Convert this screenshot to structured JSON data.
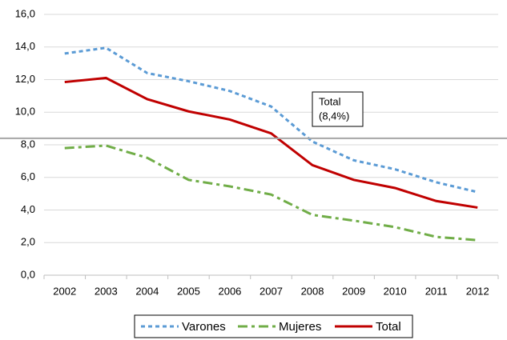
{
  "chart_data": {
    "type": "line",
    "categories": [
      "2002",
      "2003",
      "2004",
      "2005",
      "2006",
      "2007",
      "2008",
      "2009",
      "2010",
      "2011",
      "2012"
    ],
    "series": [
      {
        "name": "Varones",
        "color": "#5b9bd5",
        "style": "dash",
        "values": [
          13.6,
          13.95,
          12.4,
          11.9,
          11.3,
          10.35,
          8.2,
          7.05,
          6.5,
          5.7,
          5.1
        ]
      },
      {
        "name": "Mujeres",
        "color": "#70ad47",
        "style": "dash-dot",
        "values": [
          7.8,
          7.95,
          7.2,
          5.85,
          5.45,
          4.95,
          3.7,
          3.35,
          2.95,
          2.35,
          2.15
        ]
      },
      {
        "name": "Total",
        "color": "#c00000",
        "style": "solid",
        "values": [
          11.85,
          12.1,
          10.8,
          10.05,
          9.55,
          8.7,
          6.75,
          5.85,
          5.35,
          4.55,
          4.15
        ]
      }
    ],
    "ylim": [
      0,
      16
    ],
    "yticks": [
      {
        "value": 0,
        "label": "0,0"
      },
      {
        "value": 2,
        "label": "2,0"
      },
      {
        "value": 4,
        "label": "4,0"
      },
      {
        "value": 6,
        "label": "6,0"
      },
      {
        "value": 8,
        "label": "8,0"
      },
      {
        "value": 10,
        "label": "10,0"
      },
      {
        "value": 12,
        "label": "12,0"
      },
      {
        "value": 14,
        "label": "14,0"
      },
      {
        "value": 16,
        "label": "16,0"
      }
    ],
    "grid": true,
    "legend": "bottom",
    "reference_line": {
      "value": 8.4,
      "color": "#a6a6a6",
      "label": [
        "Total",
        "(8,4%)"
      ]
    }
  }
}
